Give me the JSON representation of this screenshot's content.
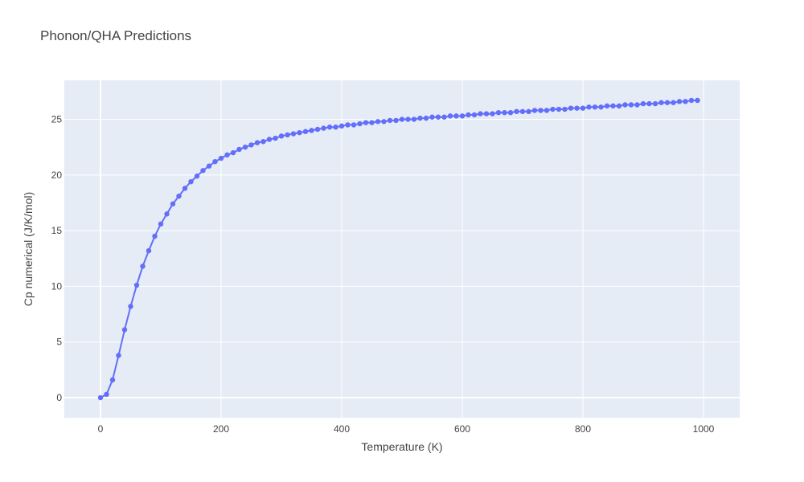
{
  "chart_data": {
    "type": "line",
    "title": "Phonon/QHA Predictions",
    "xlabel": "Temperature (K)",
    "ylabel": "Cp numerical (J/K/mol)",
    "xlim": [
      -60,
      1060
    ],
    "ylim": [
      -1.8,
      28.5
    ],
    "xticks": [
      0,
      200,
      400,
      600,
      800,
      1000
    ],
    "yticks": [
      0,
      5,
      10,
      15,
      20,
      25
    ],
    "grid": true,
    "colors": {
      "plot_bg": "#e5ecf6",
      "grid": "#ffffff",
      "series": "#636efa"
    },
    "series": [
      {
        "mode": "lines+markers",
        "x": [
          0,
          10,
          20,
          30,
          40,
          50,
          60,
          70,
          80,
          90,
          100,
          110,
          120,
          130,
          140,
          150,
          160,
          170,
          180,
          190,
          200,
          210,
          220,
          230,
          240,
          250,
          260,
          270,
          280,
          290,
          300,
          310,
          320,
          330,
          340,
          350,
          360,
          370,
          380,
          390,
          400,
          410,
          420,
          430,
          440,
          450,
          460,
          470,
          480,
          490,
          500,
          510,
          520,
          530,
          540,
          550,
          560,
          570,
          580,
          590,
          600,
          610,
          620,
          630,
          640,
          650,
          660,
          670,
          680,
          690,
          700,
          710,
          720,
          730,
          740,
          750,
          760,
          770,
          780,
          790,
          800,
          810,
          820,
          830,
          840,
          850,
          860,
          870,
          880,
          890,
          900,
          910,
          920,
          930,
          940,
          950,
          960,
          970,
          980,
          990
        ],
        "y": [
          0.0,
          0.3,
          1.6,
          3.8,
          6.1,
          8.2,
          10.1,
          11.8,
          13.2,
          14.5,
          15.6,
          16.5,
          17.4,
          18.1,
          18.8,
          19.4,
          19.9,
          20.4,
          20.8,
          21.2,
          21.5,
          21.8,
          22.0,
          22.3,
          22.5,
          22.7,
          22.9,
          23.0,
          23.2,
          23.3,
          23.5,
          23.6,
          23.7,
          23.8,
          23.9,
          24.0,
          24.1,
          24.2,
          24.3,
          24.3,
          24.4,
          24.5,
          24.5,
          24.6,
          24.7,
          24.7,
          24.8,
          24.8,
          24.9,
          24.9,
          25.0,
          25.0,
          25.0,
          25.1,
          25.1,
          25.2,
          25.2,
          25.2,
          25.3,
          25.3,
          25.3,
          25.4,
          25.4,
          25.5,
          25.5,
          25.5,
          25.6,
          25.6,
          25.6,
          25.7,
          25.7,
          25.7,
          25.8,
          25.8,
          25.8,
          25.9,
          25.9,
          25.9,
          26.0,
          26.0,
          26.0,
          26.1,
          26.1,
          26.1,
          26.2,
          26.2,
          26.2,
          26.3,
          26.3,
          26.3,
          26.4,
          26.4,
          26.4,
          26.5,
          26.5,
          26.5,
          26.6,
          26.6,
          26.7,
          26.7
        ]
      }
    ]
  }
}
